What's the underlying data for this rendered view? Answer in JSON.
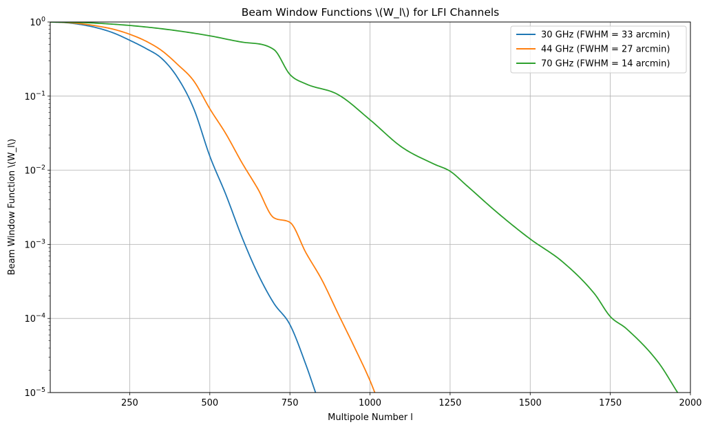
{
  "chart_data": {
    "type": "line",
    "title": "Beam Window Functions \\(W_l\\) for LFI Channels",
    "xlabel": "Multipole Number l",
    "ylabel": "Beam Window Function \\(W_l\\)",
    "xlim": [
      2,
      2000
    ],
    "ylim": [
      1e-05,
      1
    ],
    "yscale": "log",
    "grid": true,
    "legend_position": "top-right",
    "x_ticks": [
      250,
      500,
      750,
      1000,
      1250,
      1500,
      1750,
      2000
    ],
    "x_tick_labels": [
      "250",
      "500",
      "750",
      "1000",
      "1250",
      "1500",
      "1750",
      "2000"
    ],
    "y_ticks": [
      {
        "value": 1e-05,
        "base": "10",
        "exp": "−5"
      },
      {
        "value": 0.0001,
        "base": "10",
        "exp": "−4"
      },
      {
        "value": 0.001,
        "base": "10",
        "exp": "−3"
      },
      {
        "value": 0.01,
        "base": "10",
        "exp": "−2"
      },
      {
        "value": 0.1,
        "base": "10",
        "exp": "−1"
      },
      {
        "value": 1,
        "base": "10",
        "exp": "0"
      }
    ],
    "series": [
      {
        "name": "30 GHz (FWHM = 33 arcmin)",
        "color": "#1f77b4",
        "x": [
          2,
          50,
          100,
          150,
          200,
          250,
          300,
          350,
          400,
          450,
          500,
          550,
          600,
          650,
          700,
          750,
          800,
          830
        ],
        "y": [
          1.0,
          0.979,
          0.92,
          0.83,
          0.71,
          0.567,
          0.441,
          0.322,
          0.176,
          0.0675,
          0.0155,
          0.0047,
          0.00126,
          0.0004,
          0.00016,
          8.26e-05,
          2.37e-05,
          1e-05
        ]
      },
      {
        "name": "44 GHz (FWHM = 27 arcmin)",
        "color": "#ff7f0e",
        "x": [
          2,
          50,
          100,
          150,
          200,
          250,
          300,
          350,
          400,
          450,
          500,
          550,
          600,
          650,
          700,
          750,
          800,
          850,
          900,
          950,
          1000,
          1015
        ],
        "y": [
          1.0,
          0.986,
          0.945,
          0.88,
          0.797,
          0.683,
          0.553,
          0.411,
          0.266,
          0.16,
          0.0675,
          0.0311,
          0.0127,
          0.0056,
          0.00228,
          0.00198,
          0.00077,
          0.00033,
          0.000117,
          4.22e-05,
          1.45e-05,
          1e-05
        ]
      },
      {
        "name": "70 GHz (FWHM = 14 arcmin)",
        "color": "#2ca02c",
        "x": [
          2,
          100,
          200,
          300,
          400,
          500,
          600,
          700,
          750,
          800,
          900,
          1000,
          1100,
          1200,
          1250,
          1300,
          1400,
          1500,
          1600,
          1700,
          1750,
          1800,
          1900,
          1960
        ],
        "y": [
          1.0,
          0.983,
          0.933,
          0.857,
          0.76,
          0.651,
          0.536,
          0.425,
          0.196,
          0.146,
          0.105,
          0.0479,
          0.0204,
          0.0121,
          0.0097,
          0.00631,
          0.00262,
          0.00118,
          0.000586,
          0.000217,
          0.000106,
          7.29e-05,
          2.55e-05,
          1e-05
        ]
      }
    ]
  }
}
